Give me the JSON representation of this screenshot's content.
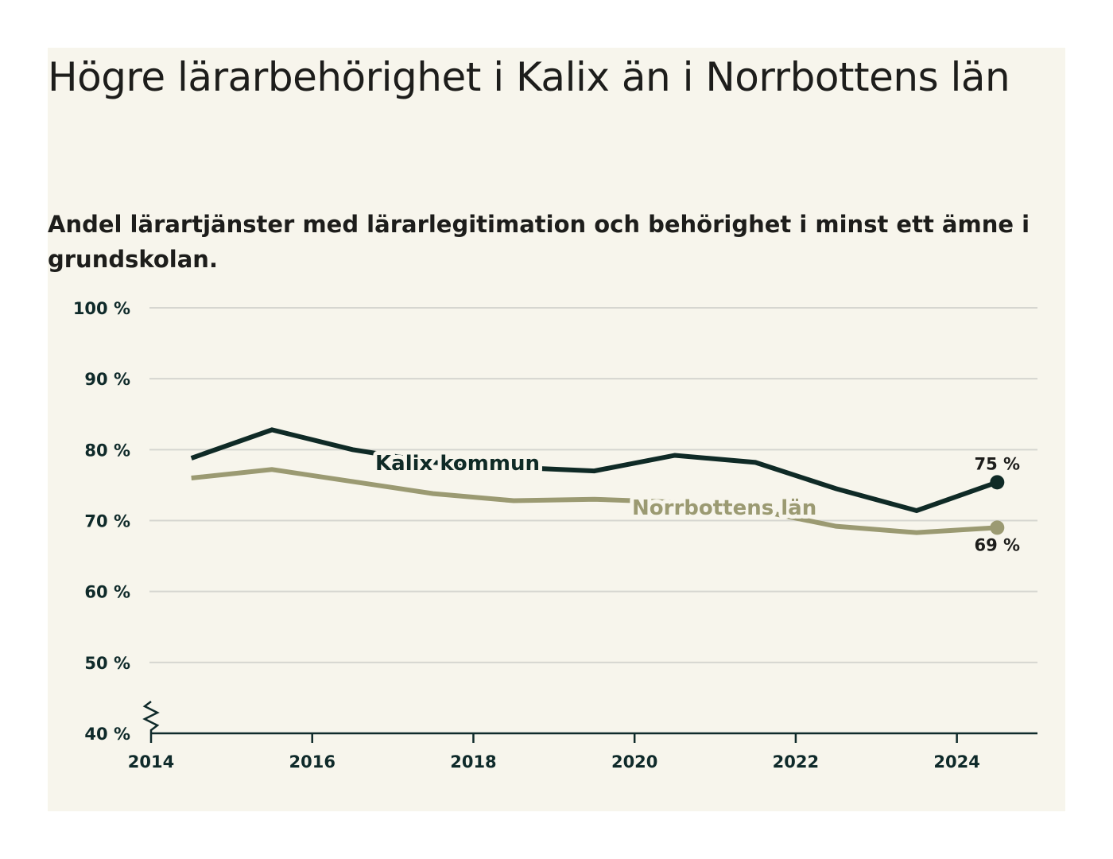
{
  "title": "Högre lärarbehörighet i Kalix än i Norrbottens län",
  "subtitle": "Andel lärartjänster med lärarlegitimation och behörighet i minst ett ämne i grundskolan.",
  "colors": {
    "background": "#f7f5ec",
    "kalix": "#0f2a26",
    "norrbotten": "#9b9a72",
    "grid": "#d6d6d0",
    "axis": "#0f2a2a"
  },
  "chart_data": {
    "type": "line",
    "xlim": [
      2014,
      2025
    ],
    "ylim": [
      40,
      100
    ],
    "y_axis_break": true,
    "y_ticks": [
      40,
      50,
      60,
      70,
      80,
      90,
      100
    ],
    "y_tick_labels": [
      "40 %",
      "50 %",
      "60 %",
      "70 %",
      "80 %",
      "90 %",
      "100 %"
    ],
    "x_ticks": [
      2014,
      2016,
      2018,
      2020,
      2022,
      2024
    ],
    "x_tick_labels": [
      "2014",
      "2016",
      "2018",
      "2020",
      "2022",
      "2024"
    ],
    "grid": true,
    "series": [
      {
        "name": "Kalix kommun",
        "x": [
          2014.5,
          2015.5,
          2016.5,
          2017.5,
          2018.5,
          2019.5,
          2020.5,
          2021.5,
          2022.5,
          2023.5,
          2024.5
        ],
        "values": [
          78.8,
          82.8,
          80.0,
          78.2,
          77.5,
          77.0,
          79.2,
          78.2,
          74.5,
          71.4,
          75.4
        ],
        "end_label": "75 %"
      },
      {
        "name": "Norrbottens län",
        "x": [
          2014.5,
          2015.5,
          2016.5,
          2017.5,
          2018.5,
          2019.5,
          2020.5,
          2021.5,
          2022.5,
          2023.5,
          2024.5
        ],
        "values": [
          76.0,
          77.2,
          75.5,
          73.8,
          72.8,
          73.0,
          72.6,
          71.5,
          69.2,
          68.3,
          69.0
        ],
        "end_label": "69 %"
      }
    ]
  }
}
